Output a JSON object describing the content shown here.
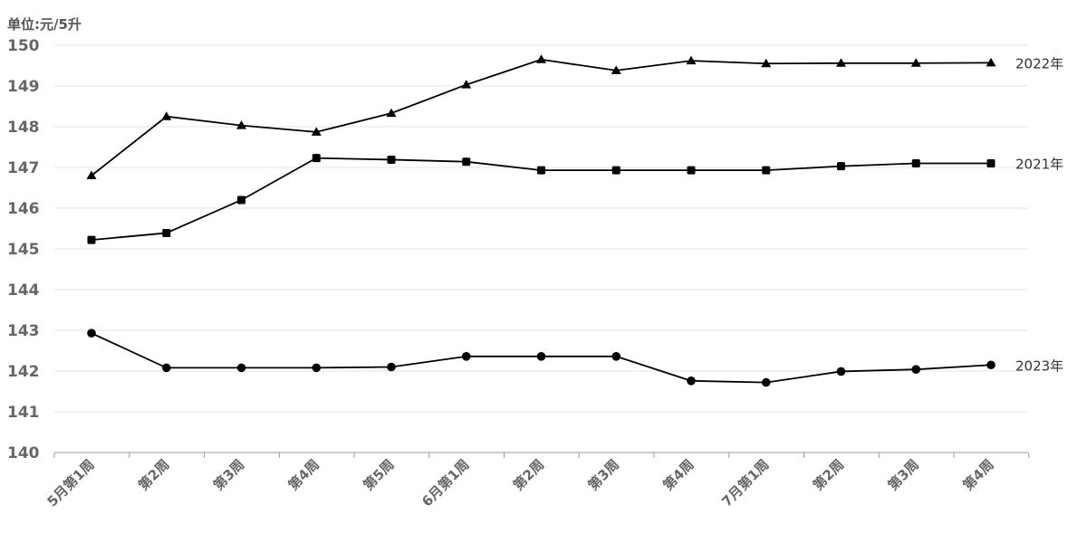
{
  "chart_data": {
    "type": "line",
    "unit_label": "单位:元/5升",
    "categories": [
      "5月第1周",
      "第2周",
      "第3周",
      "第4周",
      "第5周",
      "6月第1周",
      "第2周",
      "第3周",
      "第4周",
      "7月第1周",
      "第2周",
      "第3周",
      "第4周"
    ],
    "ylim": [
      140,
      150
    ],
    "yticks": [
      140,
      141,
      142,
      143,
      144,
      145,
      146,
      147,
      148,
      149,
      150
    ],
    "grid": true,
    "series": [
      {
        "name": "2022年",
        "marker": "triangle",
        "values": [
          146.8,
          148.25,
          148.03,
          147.87,
          148.33,
          149.03,
          149.65,
          149.38,
          149.62,
          149.55,
          149.56,
          149.56,
          149.57
        ]
      },
      {
        "name": "2021年",
        "marker": "square",
        "values": [
          145.22,
          145.39,
          146.2,
          147.23,
          147.19,
          147.14,
          146.93,
          146.93,
          146.93,
          146.93,
          147.03,
          147.1,
          147.1
        ]
      },
      {
        "name": "2023年",
        "marker": "circle",
        "values": [
          142.93,
          142.08,
          142.08,
          142.08,
          142.1,
          142.36,
          142.36,
          142.36,
          141.76,
          141.72,
          141.99,
          142.04,
          142.15
        ]
      }
    ]
  }
}
